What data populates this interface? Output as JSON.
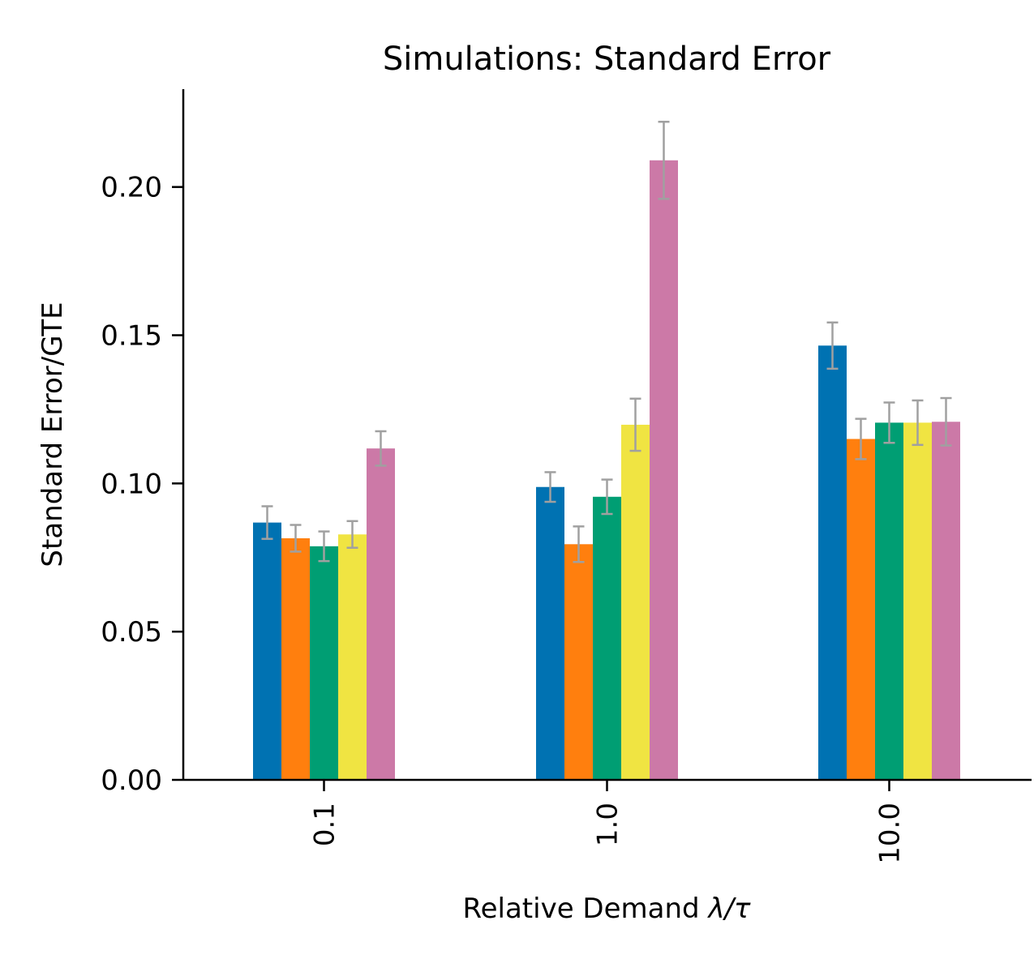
{
  "chart_data": {
    "type": "bar",
    "title": "Simulations: Standard Error",
    "xlabel_prefix": "Relative Demand ",
    "xlabel_math": "λ/τ",
    "ylabel": "Standard Error/GTE",
    "categories": [
      "0.1",
      "1.0",
      "10.0"
    ],
    "ylim": [
      0,
      0.233
    ],
    "yticks": [
      0.0,
      0.05,
      0.1,
      0.15,
      0.2
    ],
    "ytick_labels": [
      "0.00",
      "0.05",
      "0.10",
      "0.15",
      "0.20"
    ],
    "grid": false,
    "legend": "none",
    "series": [
      {
        "color": "#0072B2",
        "values": [
          0.0868,
          0.0988,
          0.1465
        ],
        "errors": [
          0.0055,
          0.005,
          0.0078
        ]
      },
      {
        "color": "#FF7F0E",
        "values": [
          0.0815,
          0.0795,
          0.115
        ],
        "errors": [
          0.0045,
          0.006,
          0.0068
        ]
      },
      {
        "color": "#009E73",
        "values": [
          0.0788,
          0.0955,
          0.1205
        ],
        "errors": [
          0.005,
          0.0058,
          0.0068
        ]
      },
      {
        "color": "#F0E442",
        "values": [
          0.0828,
          0.1198,
          0.1205
        ],
        "errors": [
          0.0045,
          0.0088,
          0.0075
        ]
      },
      {
        "color": "#CC79A7",
        "values": [
          0.1118,
          0.209,
          0.1208
        ],
        "errors": [
          0.0058,
          0.013,
          0.008
        ]
      }
    ],
    "error_color": "#A0A0A0"
  }
}
